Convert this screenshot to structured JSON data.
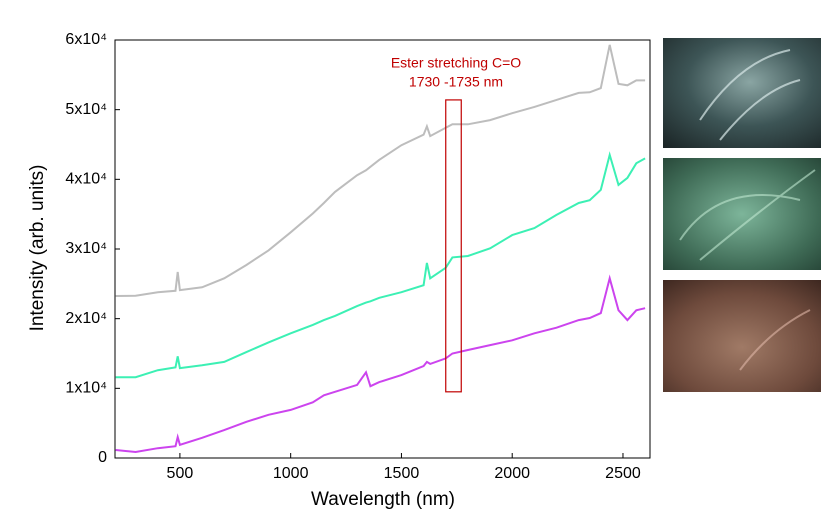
{
  "chart_data": {
    "type": "line",
    "xlabel": "Wavelength (nm)",
    "ylabel": "Intensity (arb. units)",
    "x": [
      210,
      300,
      400,
      480,
      490,
      500,
      600,
      700,
      800,
      900,
      1000,
      1100,
      1150,
      1200,
      1300,
      1340,
      1360,
      1400,
      1500,
      1600,
      1615,
      1630,
      1700,
      1730,
      1800,
      1900,
      2000,
      2100,
      2200,
      2300,
      2350,
      2400,
      2440,
      2480,
      2520,
      2560,
      2600
    ],
    "series": [
      {
        "color": "#bdbdbd",
        "values": [
          23250,
          23300,
          23800,
          24000,
          26700,
          24100,
          24500,
          25800,
          27700,
          29800,
          32400,
          35100,
          36600,
          38200,
          40600,
          41300,
          41800,
          42800,
          44900,
          46400,
          47600,
          46200,
          47400,
          47900,
          47900,
          48500,
          49500,
          50400,
          51400,
          52400,
          52500,
          53100,
          59300,
          53700,
          53500,
          54200,
          54200
        ]
      },
      {
        "color": "#3cf0b4",
        "values": [
          11600,
          11600,
          12600,
          13000,
          14600,
          12900,
          13300,
          13800,
          15200,
          16600,
          17900,
          19100,
          19800,
          20400,
          21800,
          22300,
          22500,
          23000,
          23800,
          24800,
          28000,
          25800,
          27300,
          28800,
          29000,
          30100,
          32000,
          33000,
          34900,
          36600,
          37000,
          38500,
          43500,
          39200,
          40200,
          42300,
          43000
        ]
      },
      {
        "color": "#cc44ee",
        "values": [
          1150,
          860,
          1400,
          1700,
          3000,
          1900,
          2900,
          4000,
          5200,
          6200,
          6900,
          8000,
          9000,
          9500,
          10500,
          12300,
          10300,
          10900,
          11900,
          13200,
          13800,
          13500,
          14300,
          15000,
          15500,
          16200,
          16900,
          17900,
          18700,
          19800,
          20100,
          20800,
          25800,
          21200,
          19800,
          21200,
          21500
        ]
      }
    ],
    "xlim": [
      207,
      2622
    ],
    "xticks": [
      500,
      1000,
      1500,
      2000,
      2500
    ],
    "ylim": [
      0,
      60000
    ],
    "yticks": [
      0,
      {
        "value": 10000,
        "label": "1x10⁴"
      },
      {
        "value": 20000,
        "label": "2x10⁴"
      },
      {
        "value": 30000,
        "label": "3x10⁴"
      },
      {
        "value": 40000,
        "label": "4x10⁴"
      },
      {
        "value": 50000,
        "label": "5x10⁴"
      },
      {
        "value": 60000,
        "label": "6x10⁴"
      }
    ],
    "annotation": {
      "lines": [
        "Ester stretching C=O",
        "1730 -1735 nm"
      ],
      "color": "#c00000",
      "box_x": [
        1700,
        1770
      ],
      "box_y": [
        9500,
        51400
      ]
    }
  }
}
